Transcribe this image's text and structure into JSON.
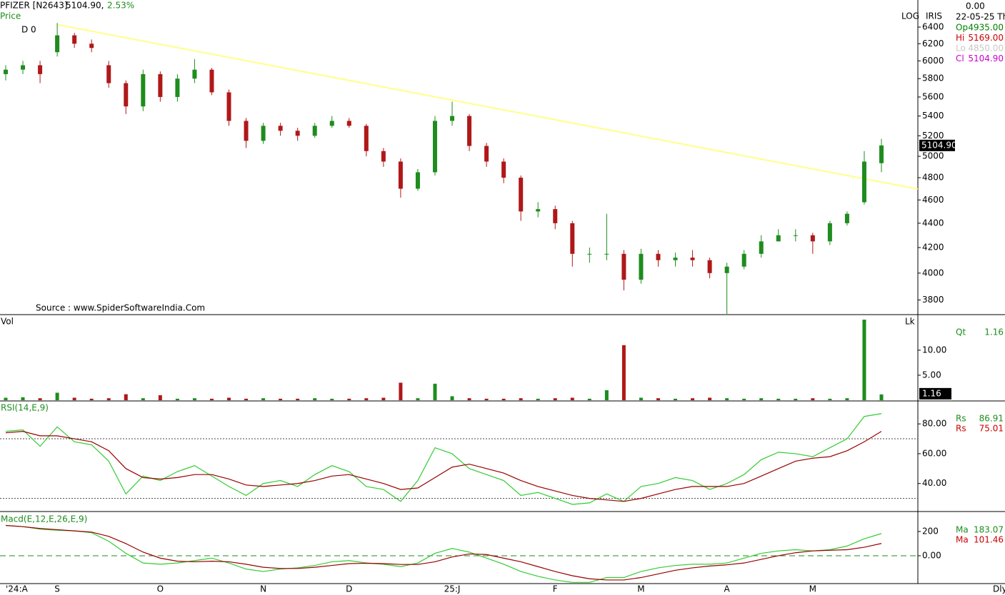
{
  "header": {
    "symbol": "PFIZER [N2643]",
    "price": "5104.90,",
    "change": "2.53%",
    "price_label": "Price",
    "cursor": "D 0",
    "source": "Source : www.SpiderSoftwareIndia.Com",
    "scale": "LOG",
    "style": "IRIS",
    "top_value": "0.00",
    "date": "22-05-25 Th",
    "last_price": "5104.90",
    "timeframe": "Dly",
    "info": [
      {
        "label": "Op",
        "value": "4935.00",
        "color": "#008000"
      },
      {
        "label": "Hi",
        "value": "5169.00",
        "color": "#cc0000"
      },
      {
        "label": "Lo",
        "value": "4850.00",
        "color": "#c8c8c8"
      },
      {
        "label": "Cl",
        "value": "5104.90",
        "color": "#cc00cc"
      }
    ]
  },
  "chart_data": [
    {
      "type": "candlestick",
      "log": true,
      "up_color": "#1e8c1e",
      "down_color": "#b01818",
      "categories": [
        "'24:A",
        null,
        null,
        "S",
        null,
        null,
        null,
        null,
        null,
        "O",
        null,
        null,
        null,
        null,
        null,
        "N",
        null,
        null,
        null,
        null,
        "D",
        null,
        null,
        null,
        null,
        null,
        "25:J",
        null,
        null,
        null,
        null,
        null,
        "F",
        null,
        null,
        null,
        null,
        "M",
        null,
        null,
        null,
        null,
        "A",
        null,
        null,
        null,
        null,
        "M",
        null,
        null,
        null,
        null
      ],
      "open": [
        5850,
        5900,
        5950,
        6100,
        6300,
        6200,
        5950,
        5750,
        5500,
        5850,
        5600,
        5800,
        5900,
        5650,
        5350,
        5150,
        5300,
        5250,
        5200,
        5300,
        5350,
        5300,
        5050,
        4950,
        4700,
        4850,
        5350,
        5400,
        5100,
        4950,
        4800,
        4500,
        4520,
        4400,
        4150,
        4150,
        4150,
        3950,
        4150,
        4100,
        4120,
        4100,
        4000,
        4050,
        4150,
        4250,
        4300,
        4300,
        4250,
        4400,
        4580,
        4935
      ],
      "high": [
        5950,
        6000,
        6000,
        6450,
        6330,
        6250,
        6000,
        5780,
        5900,
        5880,
        5850,
        6020,
        5920,
        5680,
        5380,
        5330,
        5330,
        5280,
        5330,
        5400,
        5380,
        5320,
        5080,
        4980,
        4880,
        5400,
        5550,
        5420,
        5130,
        4980,
        4820,
        4580,
        4550,
        4420,
        4200,
        4480,
        4180,
        4190,
        4180,
        4160,
        4180,
        4120,
        4080,
        4180,
        4300,
        4350,
        4350,
        4320,
        4420,
        4500,
        5050,
        5169
      ],
      "low": [
        5780,
        5850,
        5750,
        6050,
        6150,
        6100,
        5700,
        5420,
        5450,
        5550,
        5550,
        5750,
        5620,
        5300,
        5080,
        5120,
        5200,
        5150,
        5180,
        5280,
        5280,
        5000,
        4900,
        4620,
        4680,
        4820,
        5300,
        5050,
        4900,
        4750,
        4420,
        4450,
        4350,
        4050,
        4080,
        4100,
        3870,
        3920,
        4050,
        4050,
        4050,
        3960,
        3700,
        4030,
        4120,
        4250,
        4250,
        4150,
        4220,
        4380,
        4560,
        4850
      ],
      "close": [
        5900,
        5950,
        5850,
        6300,
        6200,
        6150,
        5750,
        5500,
        5850,
        5600,
        5800,
        5900,
        5650,
        5350,
        5150,
        5300,
        5250,
        5200,
        5300,
        5350,
        5300,
        5050,
        4950,
        4700,
        4850,
        5350,
        5400,
        5100,
        4950,
        4800,
        4500,
        4520,
        4400,
        4150,
        4150,
        4150,
        3950,
        4150,
        4100,
        4120,
        4100,
        4000,
        4050,
        4150,
        4250,
        4300,
        4300,
        4250,
        4400,
        4480,
        4950,
        5104.9
      ],
      "ylim": [
        3700,
        6740
      ],
      "yticks": [
        3800,
        4000,
        4200,
        4400,
        4600,
        4800,
        5000,
        5200,
        5400,
        5600,
        5800,
        6000,
        6200,
        6400
      ],
      "trendline": {
        "color": "#ffff88",
        "x": [
          3,
          51
        ],
        "y": [
          6430,
          4760
        ]
      }
    },
    {
      "type": "volume",
      "title": "Vol",
      "unit": "Lk",
      "readout_label": "Qt",
      "readout": "1.16",
      "values": [
        0.5,
        0.6,
        0.4,
        1.5,
        0.5,
        0.3,
        0.4,
        1.2,
        0.4,
        1.0,
        0.3,
        0.4,
        0.3,
        0.5,
        0.3,
        0.4,
        0.3,
        0.3,
        0.4,
        0.3,
        0.3,
        0.4,
        0.5,
        3.5,
        0.4,
        3.3,
        0.8,
        0.4,
        0.3,
        0.3,
        0.4,
        0.3,
        0.4,
        0.5,
        0.3,
        2.0,
        11.0,
        0.5,
        0.4,
        0.3,
        0.4,
        0.5,
        0.4,
        0.3,
        0.4,
        0.3,
        0.3,
        0.4,
        0.3,
        0.4,
        16.1,
        1.16
      ],
      "ylim": [
        0,
        17.1
      ],
      "yticks": [
        {
          "value": 5,
          "label": "5.00"
        },
        {
          "value": 10,
          "label": "10.00"
        }
      ]
    },
    {
      "type": "line",
      "title": "RSI(14,E,9)",
      "levels": [
        70,
        30
      ],
      "series": [
        {
          "name": "Rs",
          "color": "#33cc33",
          "readout": "86.91",
          "values": [
            75,
            76,
            65,
            78,
            68,
            66,
            55,
            33,
            45,
            42,
            48,
            52,
            45,
            38,
            32,
            40,
            42,
            38,
            46,
            52,
            48,
            38,
            36,
            28,
            42,
            64,
            60,
            50,
            46,
            42,
            32,
            34,
            30,
            26,
            27,
            33,
            28,
            38,
            40,
            44,
            42,
            36,
            40,
            46,
            56,
            61,
            60,
            58,
            64,
            70,
            85,
            86.91
          ]
        },
        {
          "name": "Rs",
          "color": "#990000",
          "readout": "75.01",
          "values": [
            74,
            75,
            72,
            72,
            70,
            68,
            62,
            50,
            44,
            43,
            44,
            46,
            46,
            43,
            39,
            38,
            39,
            40,
            42,
            45,
            46,
            43,
            40,
            36,
            37,
            44,
            51,
            53,
            50,
            47,
            42,
            38,
            35,
            32,
            30,
            29,
            28,
            30,
            33,
            36,
            38,
            38,
            38,
            40,
            45,
            50,
            55,
            57,
            58,
            62,
            68,
            75.01
          ]
        }
      ],
      "ylim": [
        21.2,
        95.4
      ],
      "yticks": [
        {
          "value": 40,
          "label": "40.00"
        },
        {
          "value": 60,
          "label": "60.00"
        },
        {
          "value": 80,
          "label": "80.00"
        }
      ]
    },
    {
      "type": "line",
      "title": "Macd(E,12,E,26,E,9)",
      "levels": [
        0
      ],
      "series": [
        {
          "name": "Ma",
          "color": "#33cc33",
          "readout": "183.07",
          "values": [
            250,
            240,
            220,
            210,
            205,
            190,
            120,
            20,
            -60,
            -70,
            -60,
            -40,
            -20,
            -60,
            -110,
            -130,
            -110,
            -100,
            -80,
            -50,
            -40,
            -60,
            -70,
            -90,
            -60,
            20,
            60,
            30,
            -20,
            -70,
            -130,
            -170,
            -200,
            -220,
            -220,
            -180,
            -180,
            -130,
            -100,
            -80,
            -70,
            -70,
            -60,
            -20,
            20,
            40,
            50,
            40,
            50,
            80,
            140,
            183.07
          ]
        },
        {
          "name": "Ma",
          "color": "#990000",
          "readout": "101.46",
          "values": [
            250,
            240,
            225,
            215,
            205,
            195,
            160,
            100,
            30,
            -20,
            -45,
            -50,
            -45,
            -50,
            -70,
            -95,
            -105,
            -105,
            -95,
            -80,
            -65,
            -62,
            -65,
            -72,
            -72,
            -50,
            -10,
            15,
            10,
            -20,
            -50,
            -90,
            -130,
            -165,
            -190,
            -200,
            -200,
            -180,
            -150,
            -120,
            -100,
            -85,
            -75,
            -60,
            -30,
            0,
            25,
            40,
            45,
            50,
            70,
            101.46
          ]
        }
      ],
      "ylim": [
        -224,
        359
      ],
      "yticks": [
        {
          "value": 0,
          "label": "0.00"
        },
        200
      ]
    }
  ]
}
